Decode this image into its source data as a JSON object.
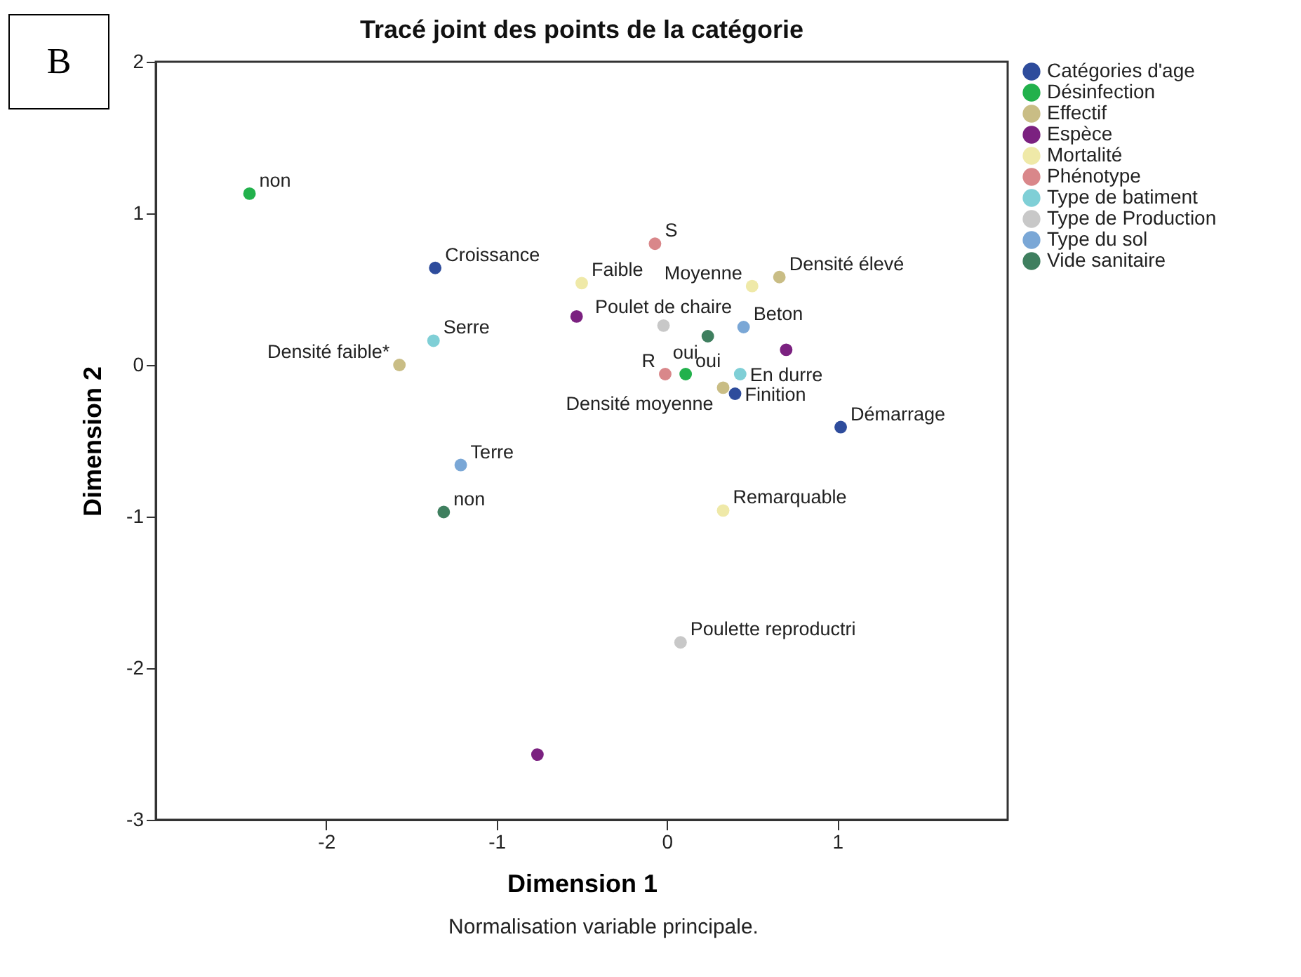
{
  "chart_data": {
    "type": "scatter",
    "title": "Tracé joint des points de la catégorie",
    "xlabel": "Dimension 1",
    "ylabel": "Dimension 2",
    "annotations": [
      "B",
      "Normalisation variable principale."
    ],
    "xlim": [
      -3,
      2
    ],
    "ylim": [
      -3,
      2
    ],
    "xticks": [
      -2,
      -1,
      0,
      1
    ],
    "yticks": [
      -3,
      -2,
      -1,
      0,
      1,
      2
    ],
    "grid": false,
    "legend": "top right",
    "marker": "circle",
    "series": [
      {
        "name": "Catégories d'age",
        "color": "#2e4c9c",
        "x": [
          -1.36,
          0.4,
          1.02
        ],
        "values": [
          0.64,
          -0.19,
          -0.41
        ],
        "value_labels": [
          "Croissance",
          "Finition",
          "Démarrage"
        ]
      },
      {
        "name": "Désinfection",
        "color": "#22b14c",
        "x": [
          -2.45,
          0.11
        ],
        "values": [
          1.13,
          -0.06
        ],
        "value_labels": [
          "non",
          "oui"
        ]
      },
      {
        "name": "Effectif",
        "color": "#c9bd85",
        "x": [
          0.66,
          -1.57,
          0.33
        ],
        "values": [
          0.58,
          0.0,
          -0.15
        ],
        "value_labels": [
          "Densité élevé",
          "Densité faible*",
          "Densité moyenne"
        ]
      },
      {
        "name": "Espèce",
        "color": "#7b2180",
        "x": [
          -0.53,
          0.7,
          -0.76
        ],
        "values": [
          0.32,
          0.1,
          -2.57
        ],
        "value_labels": [
          null,
          null,
          null
        ]
      },
      {
        "name": "Mortalité",
        "color": "#efe9a8",
        "x": [
          -0.5,
          0.5,
          0.33
        ],
        "values": [
          0.54,
          0.52,
          -0.96
        ],
        "value_labels": [
          "Faible",
          "Moyenne",
          "Remarquable"
        ]
      },
      {
        "name": "Phénotype",
        "color": "#d9878a",
        "x": [
          -0.07,
          -0.01
        ],
        "values": [
          0.8,
          -0.06
        ],
        "value_labels": [
          "S",
          "R"
        ]
      },
      {
        "name": "Type de batiment",
        "color": "#7fcfd6",
        "x": [
          -1.37,
          0.43
        ],
        "values": [
          0.16,
          -0.06
        ],
        "value_labels": [
          "Serre",
          "En durre"
        ]
      },
      {
        "name": "Type de Production",
        "color": "#c8c8c8",
        "x": [
          -0.02,
          0.08
        ],
        "values": [
          0.26,
          -1.83
        ],
        "value_labels": [
          "Poulet de chaire",
          "Poulette reproductri"
        ]
      },
      {
        "name": "Type du sol",
        "color": "#7aa7d6",
        "x": [
          -1.21,
          0.45
        ],
        "values": [
          -0.66,
          0.25
        ],
        "value_labels": [
          "Terre",
          "Beton"
        ]
      },
      {
        "name": "Vide sanitaire",
        "color": "#3f7f5f",
        "x": [
          0.24,
          -1.31
        ],
        "values": [
          0.19,
          -0.97
        ],
        "value_labels": [
          "oui",
          "non"
        ]
      }
    ]
  }
}
